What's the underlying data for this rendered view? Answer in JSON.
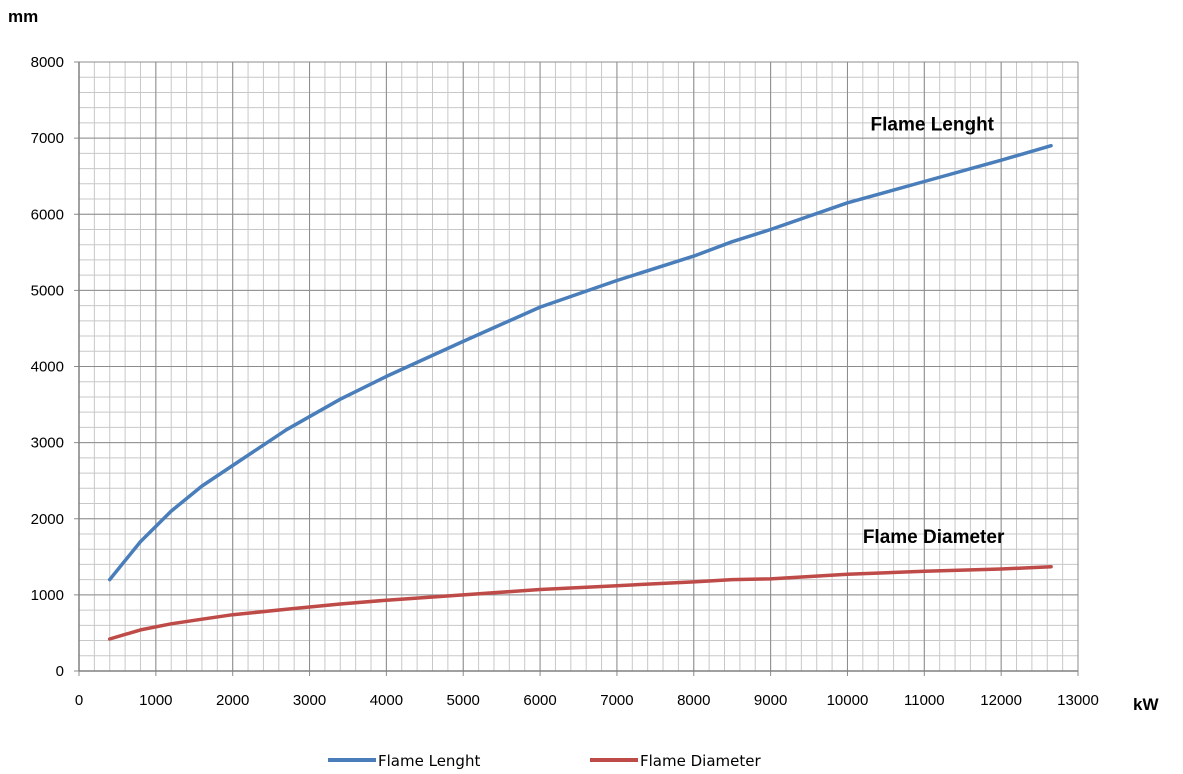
{
  "chart_data": {
    "type": "line",
    "title": "",
    "xlabel": "kW",
    "ylabel": "mm",
    "xlim": [
      0,
      13000
    ],
    "ylim": [
      0,
      8000
    ],
    "x_ticks": [
      "0",
      "1000",
      "2000",
      "3000",
      "4000",
      "5000",
      "6000",
      "7000",
      "8000",
      "9000",
      "10000",
      "11000",
      "12000",
      "13000"
    ],
    "y_ticks": [
      "0",
      "1000",
      "2000",
      "3000",
      "4000",
      "5000",
      "6000",
      "7000",
      "8000"
    ],
    "x_minor_step": 200,
    "y_minor_step": 200,
    "grid": true,
    "legend_position": "bottom",
    "series": [
      {
        "name": "Flame Lenght",
        "color": "#4A7EBB",
        "points": [
          [
            400,
            1200
          ],
          [
            800,
            1700
          ],
          [
            1200,
            2100
          ],
          [
            1600,
            2430
          ],
          [
            2000,
            2700
          ],
          [
            2700,
            3170
          ],
          [
            3400,
            3570
          ],
          [
            4000,
            3870
          ],
          [
            5000,
            4330
          ],
          [
            6000,
            4780
          ],
          [
            7000,
            5130
          ],
          [
            8000,
            5450
          ],
          [
            8500,
            5640
          ],
          [
            9000,
            5800
          ],
          [
            10000,
            6150
          ],
          [
            11000,
            6430
          ],
          [
            12000,
            6710
          ],
          [
            12650,
            6900
          ]
        ]
      },
      {
        "name": "Flame Diameter",
        "color": "#BE4B48",
        "points": [
          [
            400,
            420
          ],
          [
            800,
            540
          ],
          [
            1200,
            620
          ],
          [
            1600,
            680
          ],
          [
            2000,
            740
          ],
          [
            2700,
            810
          ],
          [
            3400,
            880
          ],
          [
            4000,
            930
          ],
          [
            5000,
            1000
          ],
          [
            6000,
            1070
          ],
          [
            7000,
            1120
          ],
          [
            8000,
            1170
          ],
          [
            8500,
            1200
          ],
          [
            9000,
            1210
          ],
          [
            10000,
            1270
          ],
          [
            11000,
            1310
          ],
          [
            12000,
            1340
          ],
          [
            12650,
            1370
          ]
        ]
      }
    ],
    "annotations": [
      {
        "text": "Flame Lenght",
        "x": 10300,
        "y": 7100
      },
      {
        "text": "Flame Diameter",
        "x": 10200,
        "y": 1680
      }
    ]
  }
}
